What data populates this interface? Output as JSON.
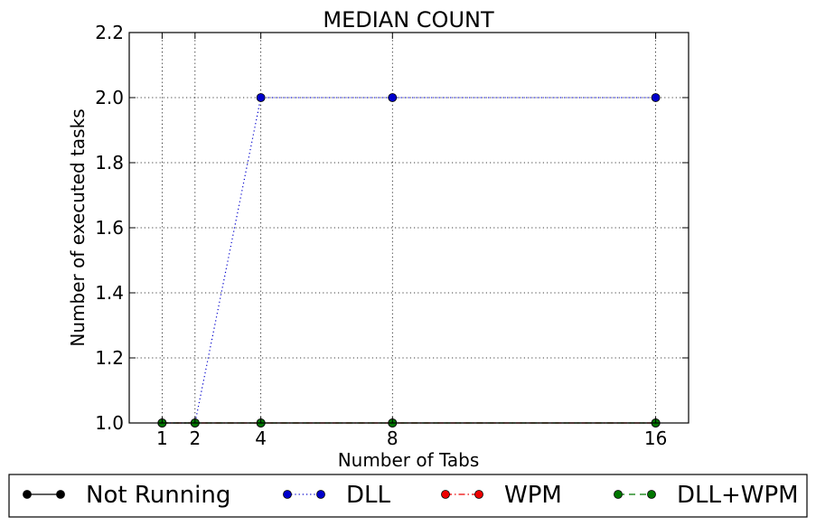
{
  "chart_data": {
    "type": "line",
    "title": "MEDIAN COUNT",
    "xlabel": "Number of Tabs",
    "ylabel": "Number of executed tasks",
    "x": [
      1,
      2,
      4,
      8,
      16
    ],
    "xticks": [
      "1",
      "2",
      "4",
      "8",
      "16"
    ],
    "xlim": [
      0,
      17
    ],
    "ylim": [
      1.0,
      2.2
    ],
    "yticks": [
      "1.0",
      "1.2",
      "1.4",
      "1.6",
      "1.8",
      "2.0",
      "2.2"
    ],
    "grid": true,
    "legend_position": "bottom",
    "series": [
      {
        "name": "Not Running",
        "values": [
          1,
          1,
          1,
          1,
          1
        ],
        "color": "#000000",
        "line_style": "solid"
      },
      {
        "name": "DLL",
        "values": [
          1,
          1,
          2,
          2,
          2
        ],
        "color": "#0000cc",
        "line_style": "dotted"
      },
      {
        "name": "WPM",
        "values": [
          1,
          1,
          1,
          1,
          1
        ],
        "color": "#ee0000",
        "line_style": "dashdot"
      },
      {
        "name": "DLL+WPM",
        "values": [
          1,
          1,
          1,
          1,
          1
        ],
        "color": "#007700",
        "line_style": "dashed"
      }
    ]
  }
}
